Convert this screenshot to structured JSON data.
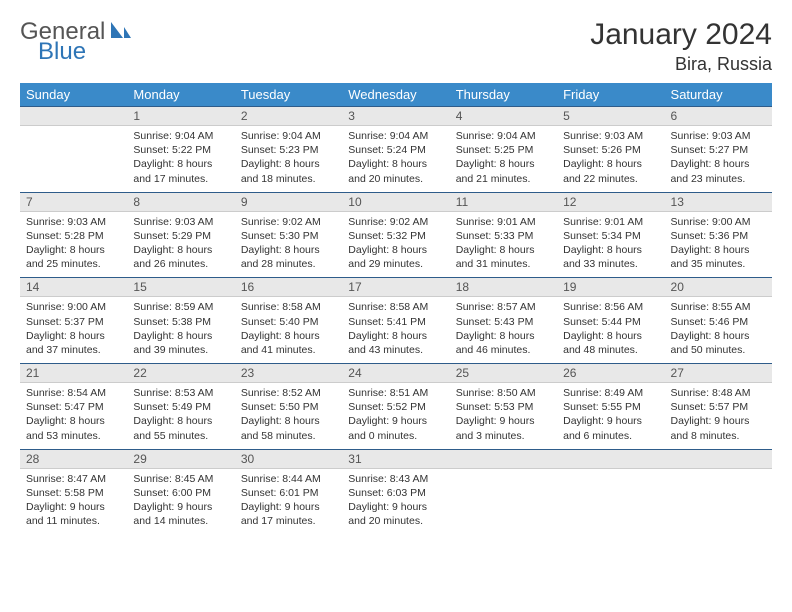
{
  "brand": {
    "general": "General",
    "blue": "Blue"
  },
  "title": "January 2024",
  "location": "Bira, Russia",
  "colors": {
    "header_bg": "#3a8ac9",
    "header_text": "#ffffff",
    "daynum_bg": "#e8e8e8",
    "daynum_border_top": "#2e5c8a",
    "text": "#333333",
    "logo_blue": "#2e75b6"
  },
  "weekdays": [
    "Sunday",
    "Monday",
    "Tuesday",
    "Wednesday",
    "Thursday",
    "Friday",
    "Saturday"
  ],
  "weeks": [
    [
      null,
      {
        "n": "1",
        "sr": "Sunrise: 9:04 AM",
        "ss": "Sunset: 5:22 PM",
        "d1": "Daylight: 8 hours",
        "d2": "and 17 minutes."
      },
      {
        "n": "2",
        "sr": "Sunrise: 9:04 AM",
        "ss": "Sunset: 5:23 PM",
        "d1": "Daylight: 8 hours",
        "d2": "and 18 minutes."
      },
      {
        "n": "3",
        "sr": "Sunrise: 9:04 AM",
        "ss": "Sunset: 5:24 PM",
        "d1": "Daylight: 8 hours",
        "d2": "and 20 minutes."
      },
      {
        "n": "4",
        "sr": "Sunrise: 9:04 AM",
        "ss": "Sunset: 5:25 PM",
        "d1": "Daylight: 8 hours",
        "d2": "and 21 minutes."
      },
      {
        "n": "5",
        "sr": "Sunrise: 9:03 AM",
        "ss": "Sunset: 5:26 PM",
        "d1": "Daylight: 8 hours",
        "d2": "and 22 minutes."
      },
      {
        "n": "6",
        "sr": "Sunrise: 9:03 AM",
        "ss": "Sunset: 5:27 PM",
        "d1": "Daylight: 8 hours",
        "d2": "and 23 minutes."
      }
    ],
    [
      {
        "n": "7",
        "sr": "Sunrise: 9:03 AM",
        "ss": "Sunset: 5:28 PM",
        "d1": "Daylight: 8 hours",
        "d2": "and 25 minutes."
      },
      {
        "n": "8",
        "sr": "Sunrise: 9:03 AM",
        "ss": "Sunset: 5:29 PM",
        "d1": "Daylight: 8 hours",
        "d2": "and 26 minutes."
      },
      {
        "n": "9",
        "sr": "Sunrise: 9:02 AM",
        "ss": "Sunset: 5:30 PM",
        "d1": "Daylight: 8 hours",
        "d2": "and 28 minutes."
      },
      {
        "n": "10",
        "sr": "Sunrise: 9:02 AM",
        "ss": "Sunset: 5:32 PM",
        "d1": "Daylight: 8 hours",
        "d2": "and 29 minutes."
      },
      {
        "n": "11",
        "sr": "Sunrise: 9:01 AM",
        "ss": "Sunset: 5:33 PM",
        "d1": "Daylight: 8 hours",
        "d2": "and 31 minutes."
      },
      {
        "n": "12",
        "sr": "Sunrise: 9:01 AM",
        "ss": "Sunset: 5:34 PM",
        "d1": "Daylight: 8 hours",
        "d2": "and 33 minutes."
      },
      {
        "n": "13",
        "sr": "Sunrise: 9:00 AM",
        "ss": "Sunset: 5:36 PM",
        "d1": "Daylight: 8 hours",
        "d2": "and 35 minutes."
      }
    ],
    [
      {
        "n": "14",
        "sr": "Sunrise: 9:00 AM",
        "ss": "Sunset: 5:37 PM",
        "d1": "Daylight: 8 hours",
        "d2": "and 37 minutes."
      },
      {
        "n": "15",
        "sr": "Sunrise: 8:59 AM",
        "ss": "Sunset: 5:38 PM",
        "d1": "Daylight: 8 hours",
        "d2": "and 39 minutes."
      },
      {
        "n": "16",
        "sr": "Sunrise: 8:58 AM",
        "ss": "Sunset: 5:40 PM",
        "d1": "Daylight: 8 hours",
        "d2": "and 41 minutes."
      },
      {
        "n": "17",
        "sr": "Sunrise: 8:58 AM",
        "ss": "Sunset: 5:41 PM",
        "d1": "Daylight: 8 hours",
        "d2": "and 43 minutes."
      },
      {
        "n": "18",
        "sr": "Sunrise: 8:57 AM",
        "ss": "Sunset: 5:43 PM",
        "d1": "Daylight: 8 hours",
        "d2": "and 46 minutes."
      },
      {
        "n": "19",
        "sr": "Sunrise: 8:56 AM",
        "ss": "Sunset: 5:44 PM",
        "d1": "Daylight: 8 hours",
        "d2": "and 48 minutes."
      },
      {
        "n": "20",
        "sr": "Sunrise: 8:55 AM",
        "ss": "Sunset: 5:46 PM",
        "d1": "Daylight: 8 hours",
        "d2": "and 50 minutes."
      }
    ],
    [
      {
        "n": "21",
        "sr": "Sunrise: 8:54 AM",
        "ss": "Sunset: 5:47 PM",
        "d1": "Daylight: 8 hours",
        "d2": "and 53 minutes."
      },
      {
        "n": "22",
        "sr": "Sunrise: 8:53 AM",
        "ss": "Sunset: 5:49 PM",
        "d1": "Daylight: 8 hours",
        "d2": "and 55 minutes."
      },
      {
        "n": "23",
        "sr": "Sunrise: 8:52 AM",
        "ss": "Sunset: 5:50 PM",
        "d1": "Daylight: 8 hours",
        "d2": "and 58 minutes."
      },
      {
        "n": "24",
        "sr": "Sunrise: 8:51 AM",
        "ss": "Sunset: 5:52 PM",
        "d1": "Daylight: 9 hours",
        "d2": "and 0 minutes."
      },
      {
        "n": "25",
        "sr": "Sunrise: 8:50 AM",
        "ss": "Sunset: 5:53 PM",
        "d1": "Daylight: 9 hours",
        "d2": "and 3 minutes."
      },
      {
        "n": "26",
        "sr": "Sunrise: 8:49 AM",
        "ss": "Sunset: 5:55 PM",
        "d1": "Daylight: 9 hours",
        "d2": "and 6 minutes."
      },
      {
        "n": "27",
        "sr": "Sunrise: 8:48 AM",
        "ss": "Sunset: 5:57 PM",
        "d1": "Daylight: 9 hours",
        "d2": "and 8 minutes."
      }
    ],
    [
      {
        "n": "28",
        "sr": "Sunrise: 8:47 AM",
        "ss": "Sunset: 5:58 PM",
        "d1": "Daylight: 9 hours",
        "d2": "and 11 minutes."
      },
      {
        "n": "29",
        "sr": "Sunrise: 8:45 AM",
        "ss": "Sunset: 6:00 PM",
        "d1": "Daylight: 9 hours",
        "d2": "and 14 minutes."
      },
      {
        "n": "30",
        "sr": "Sunrise: 8:44 AM",
        "ss": "Sunset: 6:01 PM",
        "d1": "Daylight: 9 hours",
        "d2": "and 17 minutes."
      },
      {
        "n": "31",
        "sr": "Sunrise: 8:43 AM",
        "ss": "Sunset: 6:03 PM",
        "d1": "Daylight: 9 hours",
        "d2": "and 20 minutes."
      },
      null,
      null,
      null
    ]
  ]
}
